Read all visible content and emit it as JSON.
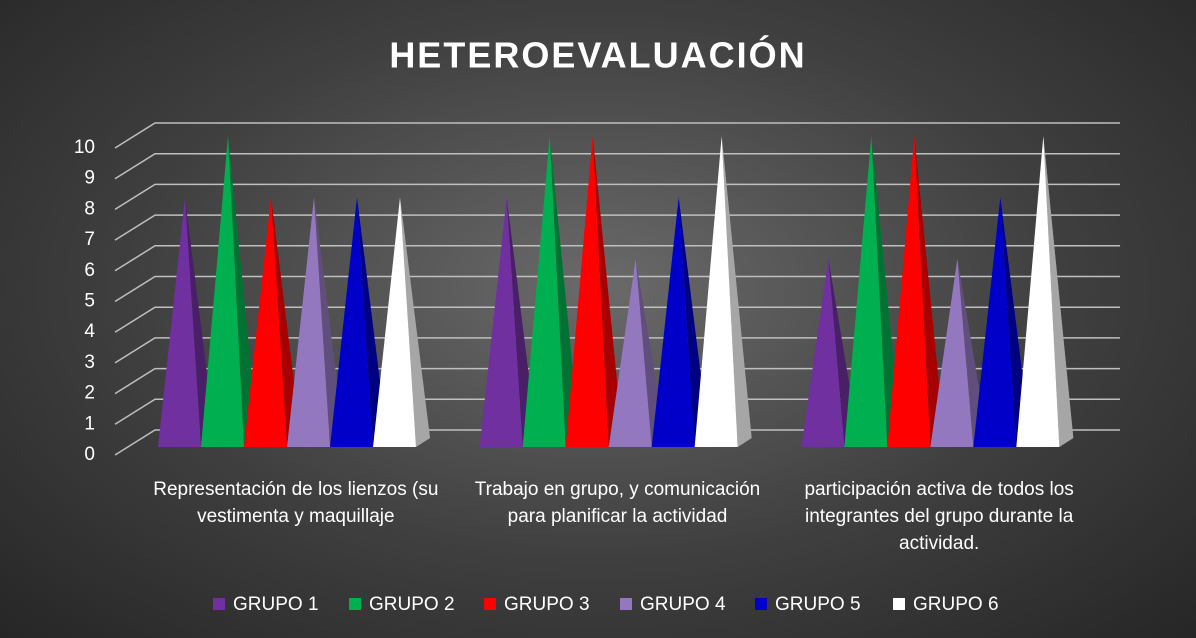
{
  "chart_data": {
    "type": "pyramid3d",
    "title": "HETEROEVALUACIÓN",
    "categories": [
      "Representación de los lienzos (su vestimenta y maquillaje",
      "Trabajo en grupo, y comunicación para planificar la actividad",
      "participación activa de todos los integrantes del grupo durante la actividad."
    ],
    "series": [
      {
        "name": "GRUPO 1",
        "color": "#7030a0",
        "values": [
          8,
          8,
          6
        ]
      },
      {
        "name": "GRUPO 2",
        "color": "#00b050",
        "values": [
          10,
          10,
          10
        ]
      },
      {
        "name": "GRUPO 3",
        "color": "#ff0000",
        "values": [
          8,
          10,
          10
        ]
      },
      {
        "name": "GRUPO 4",
        "color": "#9478bf",
        "values": [
          8,
          6,
          6
        ]
      },
      {
        "name": "GRUPO 5",
        "color": "#0000c8",
        "values": [
          8,
          8,
          8
        ]
      },
      {
        "name": "GRUPO 6",
        "color": "#ffffff",
        "values": [
          8,
          10,
          10
        ]
      }
    ],
    "ylim": [
      0,
      10
    ],
    "yticks": [
      0,
      1,
      2,
      3,
      4,
      5,
      6,
      7,
      8,
      9,
      10
    ],
    "grid": true,
    "legend": "bottom"
  }
}
